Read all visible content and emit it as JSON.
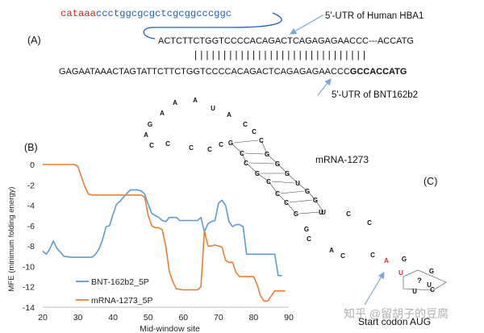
{
  "colors": {
    "text": "#111111",
    "red": "#e02020",
    "link": "#1f5fbf",
    "arrow": "#7aa7d6",
    "blue_series": "#5b9bd5",
    "orange_series": "#ed7d31",
    "axis": "#bfbfbf",
    "watermark": "#a8a8a8"
  },
  "panel_a": {
    "label": "(A)",
    "red_prefix": "cataaa",
    "seq_top": "ccctggcgcgctcgcggcccggc",
    "hba1_seq": "ACTCTTCTGGTCCCCACAGACTCAGAGAGAACCC---ACCATG",
    "bars": "||||||||||||||||||||||||||||||",
    "bnt_seq": "GAGAATAAACTAGTATTCTTCTGGTCCCCACAGACTCAGAGAGAACCC",
    "bnt_bold": "GCCACCATG",
    "hba1_label": "5'-UTR of Human HBA1",
    "bnt_label": "5'-UTR of BNT162b2"
  },
  "panel_b": {
    "label": "(B)"
  },
  "panel_c": {
    "label": "(C)",
    "title": "mRNA-1273",
    "start_codon_label": "Start codon AUG",
    "loop_top": [
      "A",
      "A",
      "U",
      "A",
      "A",
      "G",
      "A",
      "C",
      "C",
      "C",
      "C",
      "C",
      "C",
      "C"
    ],
    "stem_left": [
      "G",
      "C",
      "C",
      "G",
      "C",
      "C",
      "C",
      "G"
    ],
    "stem_right": [
      "C",
      "G",
      "G",
      "G",
      "U",
      "G",
      "G",
      "U"
    ],
    "loop_inner": [
      "U",
      "C",
      "C",
      "A",
      "G",
      "C",
      "C",
      "C",
      "A",
      "U",
      "G",
      "G",
      "C",
      "U",
      "U",
      "?"
    ]
  },
  "watermark": "知乎 @留胡子的豆腐",
  "chart_data": {
    "type": "line",
    "title": "",
    "xlabel": "Mid-window site",
    "ylabel": "MFE (minimum folding energy)",
    "xlim": [
      20,
      90
    ],
    "ylim": [
      -14,
      0
    ],
    "xticks": [
      "20",
      "30",
      "40",
      "50",
      "60",
      "70",
      "80",
      "90"
    ],
    "yticks": [
      "0",
      "-2",
      "-4",
      "-6",
      "-8",
      "-10",
      "-12",
      "-14"
    ],
    "series": [
      {
        "name": "BNT-162b2_5P",
        "x": [
          20,
          21,
          22,
          23,
          24,
          25,
          26,
          28,
          30,
          32,
          34,
          35,
          36,
          37,
          38,
          39,
          40,
          41,
          42,
          43,
          44,
          45,
          46,
          47,
          48,
          49,
          50,
          51,
          52,
          53,
          54,
          55,
          56,
          57,
          58,
          59,
          60,
          61,
          62,
          63,
          64,
          65,
          66,
          67,
          68,
          69,
          70,
          71,
          72,
          73,
          74,
          75,
          76,
          77,
          78,
          80,
          82,
          84,
          86,
          87,
          88
        ],
        "values": [
          -8.5,
          -8.8,
          -8.3,
          -7.5,
          -8.2,
          -8.6,
          -9.0,
          -9.1,
          -9.1,
          -9.1,
          -9.1,
          -8.8,
          -8.3,
          -7.4,
          -6.1,
          -6.0,
          -4.9,
          -3.9,
          -3.6,
          -3.2,
          -2.8,
          -2.5,
          -2.5,
          -2.5,
          -2.6,
          -2.9,
          -3.9,
          -4.8,
          -5.0,
          -5.2,
          -5.5,
          -5.6,
          -5.2,
          -5.2,
          -5.2,
          -5.5,
          -5.5,
          -5.5,
          -5.5,
          -5.5,
          -5.5,
          -5.2,
          -6.6,
          -5.8,
          -5.6,
          -5.5,
          -3.8,
          -3.5,
          -4.0,
          -5.6,
          -6.1,
          -5.9,
          -5.9,
          -6.1,
          -8.8,
          -8.8,
          -8.8,
          -8.8,
          -8.8,
          -10.9,
          -10.9
        ]
      },
      {
        "name": "mRNA-1273_5P",
        "x": [
          20,
          22,
          24,
          26,
          28,
          29,
          30,
          31,
          32,
          33,
          34,
          36,
          38,
          40,
          42,
          44,
          46,
          48,
          49,
          50,
          51,
          52,
          53,
          54,
          55,
          56,
          57,
          58,
          60,
          62,
          64,
          65,
          66,
          67,
          68,
          69,
          70,
          71,
          72,
          73,
          74,
          75,
          76,
          78,
          80,
          81,
          82,
          83,
          84,
          86,
          88,
          89
        ],
        "values": [
          0,
          0,
          0,
          0,
          0,
          0,
          -0.2,
          -1.2,
          -2.2,
          -2.9,
          -3.0,
          -3.0,
          -3.0,
          -3.0,
          -3.0,
          -3.0,
          -3.0,
          -3.0,
          -3.2,
          -5.0,
          -6.0,
          -6.2,
          -6.2,
          -6.4,
          -8.0,
          -10.5,
          -11.5,
          -12.2,
          -12.3,
          -12.3,
          -12.3,
          -12.0,
          -6.5,
          -8.0,
          -8.0,
          -7.9,
          -8.0,
          -8.1,
          -9.4,
          -9.6,
          -9.6,
          -10.6,
          -11.0,
          -11.0,
          -11.0,
          -11.8,
          -12.9,
          -13.4,
          -13.4,
          -12.4,
          -12.4,
          -12.4
        ]
      }
    ],
    "legend": "bottom-left"
  }
}
